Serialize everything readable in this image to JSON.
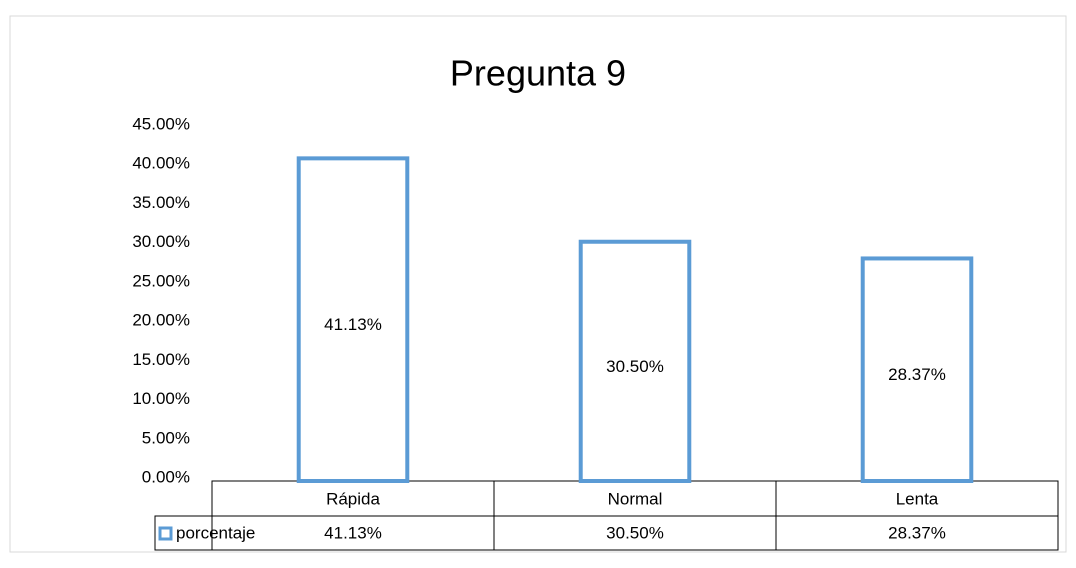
{
  "chart_data": {
    "type": "bar",
    "title": "Pregunta 9",
    "categories": [
      "Rápida",
      "Normal",
      "Lenta"
    ],
    "series": [
      {
        "name": "porcentaje",
        "color": "#5b9bd5",
        "values": [
          41.13,
          30.5,
          28.37
        ],
        "value_labels": [
          "41.13%",
          "30.50%",
          "28.37%"
        ]
      }
    ],
    "ylim": [
      0,
      45
    ],
    "yticks": [
      {
        "value": 0,
        "label": "0.00%"
      },
      {
        "value": 5,
        "label": "5.00%"
      },
      {
        "value": 10,
        "label": "10.00%"
      },
      {
        "value": 15,
        "label": "15.00%"
      },
      {
        "value": 20,
        "label": "20.00%"
      },
      {
        "value": 25,
        "label": "25.00%"
      },
      {
        "value": 30,
        "label": "30.00%"
      },
      {
        "value": 35,
        "label": "35.00%"
      },
      {
        "value": 40,
        "label": "40.00%"
      },
      {
        "value": 45,
        "label": "45.00%"
      }
    ],
    "grid": false
  }
}
